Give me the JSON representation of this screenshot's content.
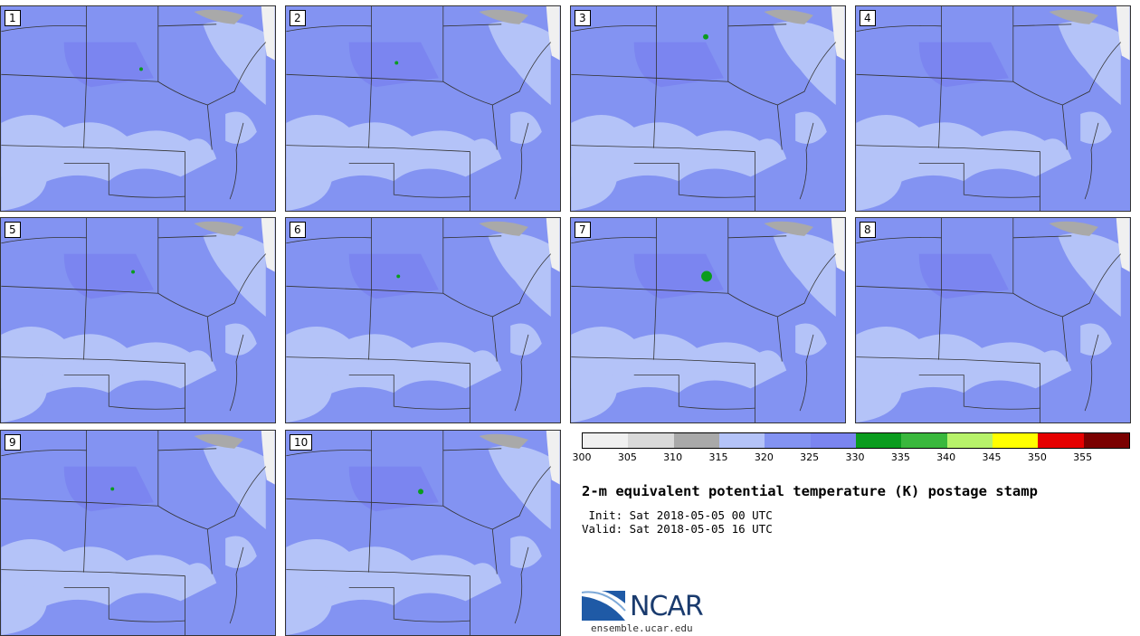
{
  "panels": [
    "1",
    "2",
    "3",
    "4",
    "5",
    "6",
    "7",
    "8",
    "9",
    "10"
  ],
  "colorbar": {
    "colors": [
      "#f0f0f0",
      "#d9d9d9",
      "#a9a9a9",
      "#b4c3f8",
      "#8393f2",
      "#7b85f0",
      "#0a9c1e",
      "#3ab83d",
      "#b7f26a",
      "#ffff00",
      "#e60000",
      "#7a0000"
    ],
    "ticks": [
      "300",
      "305",
      "310",
      "315",
      "320",
      "325",
      "330",
      "335",
      "340",
      "345",
      "350",
      "355"
    ]
  },
  "title": "2-m equivalent potential temperature (K) postage stamp",
  "init": " Init: Sat 2018-05-05 00 UTC",
  "valid": "Valid: Sat 2018-05-05 16 UTC",
  "logo": {
    "text": "NCAR",
    "site": "ensemble.ucar.edu"
  }
}
